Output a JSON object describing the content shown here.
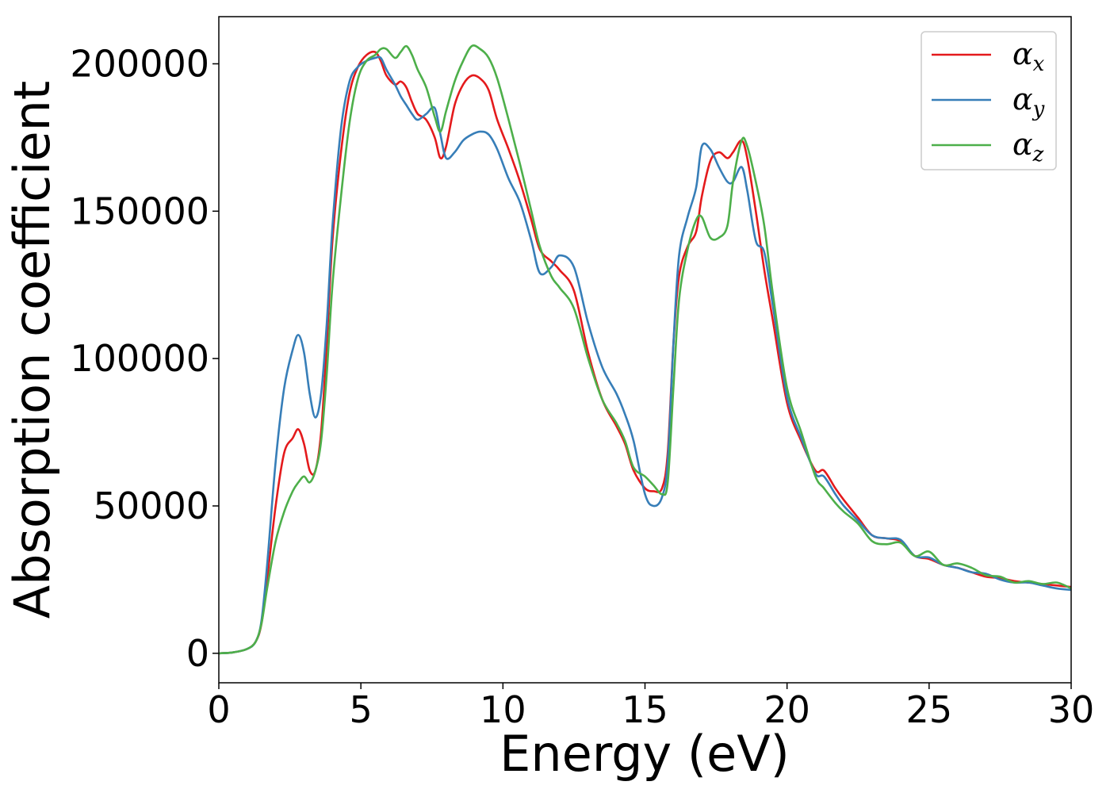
{
  "chart_data": {
    "type": "line",
    "title": "",
    "xlabel": "Energy (eV)",
    "ylabel": "Absorption coefficient",
    "xlim": [
      0,
      30
    ],
    "ylim": [
      -10000,
      216000
    ],
    "xticks": [
      0,
      5,
      10,
      15,
      20,
      25,
      30
    ],
    "xtick_labels": [
      "0",
      "5",
      "10",
      "15",
      "20",
      "25",
      "30"
    ],
    "yticks": [
      0,
      50000,
      100000,
      150000,
      200000
    ],
    "ytick_labels": [
      "0",
      "50000",
      "100000",
      "150000",
      "200000"
    ],
    "grid": false,
    "legend": {
      "position": "top-right",
      "entries": [
        {
          "symbol": "α",
          "sub": "x"
        },
        {
          "symbol": "α",
          "sub": "y"
        },
        {
          "symbol": "α",
          "sub": "z"
        }
      ]
    },
    "series": [
      {
        "color": "#e41a1c",
        "x": [
          0,
          0.5,
          1.0,
          1.3,
          1.5,
          1.7,
          2.0,
          2.3,
          2.6,
          2.8,
          3.0,
          3.2,
          3.4,
          3.6,
          3.8,
          4.0,
          4.3,
          4.6,
          4.9,
          5.2,
          5.5,
          5.7,
          5.9,
          6.2,
          6.4,
          6.6,
          6.8,
          7.0,
          7.3,
          7.6,
          7.8,
          8.0,
          8.3,
          8.6,
          8.9,
          9.2,
          9.5,
          9.8,
          10.2,
          10.6,
          11.0,
          11.3,
          11.7,
          12.0,
          12.5,
          13.0,
          13.5,
          14.0,
          14.3,
          14.6,
          15.0,
          15.3,
          15.6,
          15.8,
          16.0,
          16.2,
          16.5,
          16.8,
          17.0,
          17.3,
          17.6,
          17.9,
          18.1,
          18.4,
          18.6,
          18.9,
          19.2,
          19.5,
          20.0,
          20.5,
          21.0,
          21.3,
          21.7,
          22.0,
          22.5,
          23.0,
          23.5,
          24.0,
          24.5,
          25.0,
          25.5,
          26.0,
          26.5,
          27.0,
          27.5,
          28.0,
          28.5,
          29.0,
          29.5,
          30.0
        ],
        "y": [
          0,
          300,
          1500,
          4000,
          10000,
          25000,
          50000,
          68000,
          73000,
          76000,
          71000,
          62000,
          62000,
          75000,
          105000,
          140000,
          170000,
          190000,
          199000,
          203000,
          204000,
          201000,
          196000,
          193000,
          194000,
          192000,
          187000,
          183000,
          181000,
          175000,
          168000,
          172000,
          186000,
          193000,
          196000,
          195000,
          191000,
          181000,
          171000,
          160000,
          147000,
          137000,
          133000,
          130000,
          123000,
          102000,
          86000,
          77000,
          71000,
          62000,
          56000,
          55000,
          56000,
          68000,
          105000,
          128000,
          138000,
          143000,
          155000,
          167000,
          170000,
          168000,
          170000,
          174000,
          168000,
          150000,
          130000,
          113000,
          85000,
          72000,
          62000,
          62000,
          56000,
          52000,
          46000,
          40000,
          39000,
          38000,
          33000,
          32000,
          30000,
          29000,
          27500,
          26000,
          25500,
          24500,
          24000,
          23500,
          23000,
          22500
        ]
      },
      {
        "color": "#377eb8",
        "x": [
          0,
          0.5,
          1.0,
          1.3,
          1.5,
          1.7,
          2.0,
          2.3,
          2.6,
          2.8,
          3.0,
          3.2,
          3.4,
          3.6,
          3.8,
          4.0,
          4.3,
          4.6,
          4.9,
          5.2,
          5.5,
          5.7,
          5.9,
          6.2,
          6.4,
          6.6,
          6.8,
          7.0,
          7.3,
          7.6,
          7.8,
          8.0,
          8.3,
          8.6,
          8.9,
          9.2,
          9.5,
          9.8,
          10.2,
          10.6,
          11.0,
          11.3,
          11.7,
          12.0,
          12.5,
          13.0,
          13.5,
          14.0,
          14.3,
          14.6,
          15.0,
          15.3,
          15.6,
          15.8,
          16.0,
          16.2,
          16.5,
          16.8,
          17.0,
          17.3,
          17.6,
          17.9,
          18.1,
          18.4,
          18.6,
          18.9,
          19.2,
          19.5,
          20.0,
          20.5,
          21.0,
          21.3,
          21.7,
          22.0,
          22.5,
          23.0,
          23.5,
          24.0,
          24.5,
          25.0,
          25.5,
          26.0,
          26.5,
          27.0,
          27.5,
          28.0,
          28.5,
          29.0,
          29.5,
          30.0
        ],
        "y": [
          0,
          300,
          1500,
          4000,
          11000,
          30000,
          65000,
          90000,
          103000,
          108000,
          102000,
          88000,
          80000,
          88000,
          112000,
          145000,
          178000,
          194000,
          199000,
          201000,
          202000,
          202000,
          198000,
          193000,
          189000,
          186000,
          183000,
          181000,
          183000,
          185000,
          176000,
          168000,
          170000,
          174000,
          176000,
          177000,
          176000,
          171000,
          161000,
          153000,
          140000,
          129000,
          131000,
          135000,
          131000,
          112000,
          97000,
          88000,
          81000,
          72000,
          54000,
          50000,
          53000,
          65000,
          105000,
          135000,
          148000,
          158000,
          172000,
          171000,
          165000,
          160000,
          160000,
          165000,
          157000,
          140000,
          136000,
          118000,
          87000,
          73000,
          61000,
          60000,
          54000,
          50000,
          45000,
          40000,
          39000,
          38500,
          33000,
          32500,
          30000,
          29000,
          27500,
          27000,
          25000,
          24000,
          24000,
          23000,
          22000,
          21500
        ]
      },
      {
        "color": "#4daf4a",
        "x": [
          0,
          0.5,
          1.0,
          1.3,
          1.5,
          1.7,
          2.0,
          2.3,
          2.6,
          2.8,
          3.0,
          3.2,
          3.4,
          3.6,
          3.8,
          4.0,
          4.3,
          4.6,
          4.9,
          5.2,
          5.5,
          5.7,
          5.9,
          6.2,
          6.4,
          6.6,
          6.8,
          7.0,
          7.3,
          7.6,
          7.8,
          8.0,
          8.3,
          8.6,
          8.9,
          9.2,
          9.5,
          9.8,
          10.2,
          10.6,
          11.0,
          11.3,
          11.7,
          12.0,
          12.5,
          13.0,
          13.5,
          14.0,
          14.3,
          14.6,
          15.0,
          15.3,
          15.6,
          15.8,
          16.0,
          16.2,
          16.5,
          16.8,
          17.0,
          17.3,
          17.6,
          17.9,
          18.1,
          18.4,
          18.6,
          18.9,
          19.2,
          19.5,
          20.0,
          20.5,
          21.0,
          21.3,
          21.7,
          22.0,
          22.5,
          23.0,
          23.5,
          24.0,
          24.5,
          25.0,
          25.5,
          26.0,
          26.5,
          27.0,
          27.5,
          28.0,
          28.5,
          29.0,
          29.5,
          30.0
        ],
        "y": [
          0,
          300,
          1500,
          4000,
          10000,
          22000,
          38000,
          48000,
          55000,
          58000,
          60000,
          58000,
          62000,
          72000,
          95000,
          125000,
          155000,
          180000,
          195000,
          201000,
          203000,
          205000,
          205000,
          202000,
          204000,
          206000,
          203000,
          198000,
          192000,
          182000,
          177000,
          184000,
          194000,
          201000,
          206000,
          205000,
          202000,
          195000,
          181000,
          166000,
          150000,
          138000,
          128000,
          124000,
          117000,
          100000,
          86000,
          78000,
          72000,
          63000,
          60000,
          57000,
          54000,
          58000,
          90000,
          120000,
          137000,
          147000,
          148000,
          141000,
          141000,
          145000,
          160000,
          174000,
          172000,
          160000,
          145000,
          122000,
          90000,
          75000,
          60000,
          56000,
          51000,
          48000,
          44000,
          38000,
          37000,
          37500,
          33000,
          34500,
          30000,
          30500,
          29000,
          26500,
          26000,
          24000,
          24500,
          23500,
          24000,
          22000
        ]
      }
    ]
  }
}
